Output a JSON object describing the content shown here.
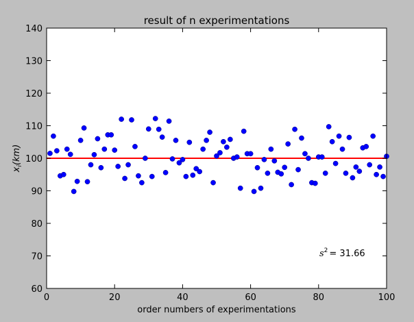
{
  "chart_data": {
    "type": "scatter",
    "title": "result of n experimentations",
    "xlabel": "order numbers of experimentations",
    "ylabel_main": "x",
    "ylabel_sub": "i",
    "ylabel_unit": "(km)",
    "xlim": [
      0,
      100
    ],
    "ylim": [
      60,
      140
    ],
    "xticks": [
      "0",
      "20",
      "40",
      "60",
      "80",
      "100"
    ],
    "yticks": [
      "60",
      "70",
      "80",
      "90",
      "100",
      "110",
      "120",
      "130",
      "140"
    ],
    "grid": false,
    "point_color": "#0000ff",
    "mean_line_color": "#ff0000",
    "mean": 100,
    "annotation_label": "s",
    "annotation_exp": "2",
    "annotation_value": "= 31.66",
    "x": [
      1,
      2,
      3,
      4,
      5,
      6,
      7,
      8,
      9,
      10,
      11,
      12,
      13,
      14,
      15,
      16,
      17,
      18,
      19,
      20,
      21,
      22,
      23,
      24,
      25,
      26,
      27,
      28,
      29,
      30,
      31,
      32,
      33,
      34,
      35,
      36,
      37,
      38,
      39,
      40,
      41,
      42,
      43,
      44,
      45,
      46,
      47,
      48,
      49,
      50,
      51,
      52,
      53,
      54,
      55,
      56,
      57,
      58,
      59,
      60,
      61,
      62,
      63,
      64,
      65,
      66,
      67,
      68,
      69,
      70,
      71,
      72,
      73,
      74,
      75,
      76,
      77,
      78,
      79,
      80,
      81,
      82,
      83,
      84,
      85,
      86,
      87,
      88,
      89,
      90,
      91,
      92,
      93,
      94,
      95,
      96,
      97,
      98,
      99,
      100
    ],
    "y": [
      101.5,
      106.8,
      102.3,
      94.6,
      95.0,
      102.8,
      101.2,
      89.8,
      92.9,
      105.5,
      109.3,
      92.8,
      98.0,
      101.1,
      106.0,
      97.1,
      102.8,
      107.2,
      107.2,
      102.5,
      97.5,
      112.0,
      93.8,
      98.0,
      111.8,
      103.6,
      94.6,
      92.5,
      100.0,
      109.0,
      94.4,
      112.2,
      108.9,
      106.5,
      95.6,
      111.4,
      99.8,
      105.5,
      98.6,
      99.6,
      94.4,
      104.9,
      94.8,
      96.8,
      95.9,
      102.8,
      105.5,
      108.0,
      92.5,
      100.7,
      101.7,
      105.1,
      103.4,
      105.8,
      100.0,
      100.4,
      90.8,
      108.3,
      101.4,
      101.4,
      89.8,
      97.1,
      90.8,
      99.6,
      95.4,
      102.8,
      99.2,
      95.7,
      95.2,
      97.2,
      104.4,
      91.9,
      108.9,
      96.5,
      106.2,
      101.4,
      100.0,
      92.5,
      92.3,
      100.4,
      100.4,
      95.4,
      109.7,
      105.1,
      98.4,
      106.8,
      102.8,
      95.4,
      106.4,
      94.0,
      97.3,
      96.0,
      103.2,
      103.6,
      98.0,
      106.8,
      95.0,
      97.3,
      94.4,
      100.6
    ]
  }
}
